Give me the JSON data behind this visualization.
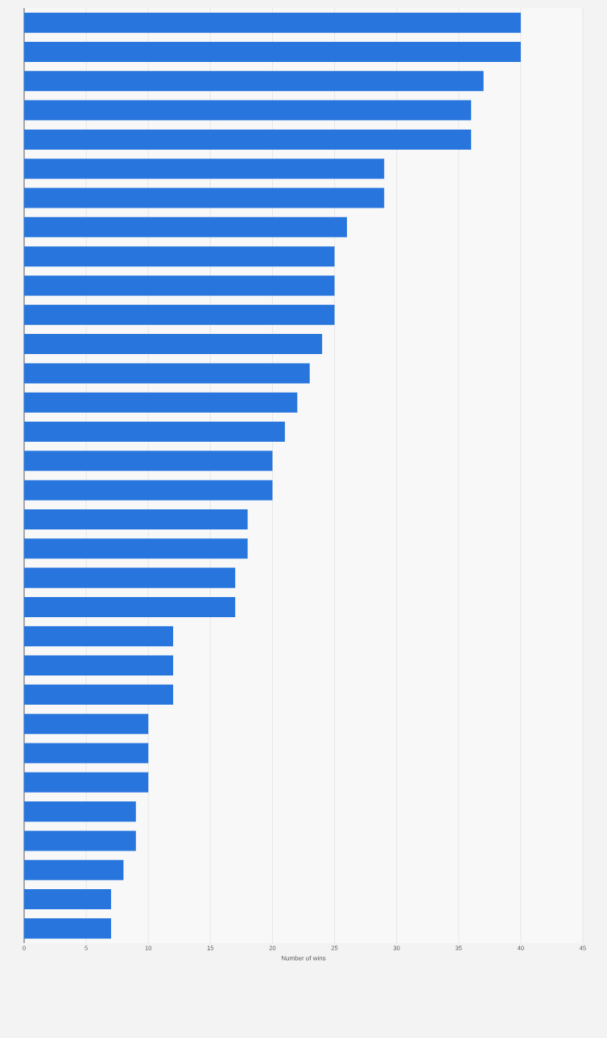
{
  "chart_data": {
    "type": "bar",
    "orientation": "horizontal",
    "xlabel": "Number of wins",
    "categories": [
      null,
      null,
      null,
      null,
      null,
      null,
      null,
      null,
      null,
      null,
      null,
      null,
      null,
      null,
      null,
      null,
      null,
      null,
      null,
      null,
      null,
      null,
      null,
      null,
      null,
      null,
      null,
      null,
      null,
      null,
      null,
      null
    ],
    "values": [
      40,
      40,
      37,
      36,
      36,
      29,
      29,
      26,
      25,
      25,
      25,
      24,
      23,
      22,
      21,
      20,
      20,
      18,
      18,
      17,
      17,
      12,
      12,
      12,
      10,
      10,
      10,
      9,
      9,
      8,
      7,
      7
    ],
    "color": "#2876dd",
    "xlim": [
      0,
      45
    ],
    "xticks": [
      0,
      5,
      10,
      15,
      20,
      25,
      30,
      35,
      40,
      45
    ],
    "grid": "x",
    "tick_labels": "x"
  }
}
